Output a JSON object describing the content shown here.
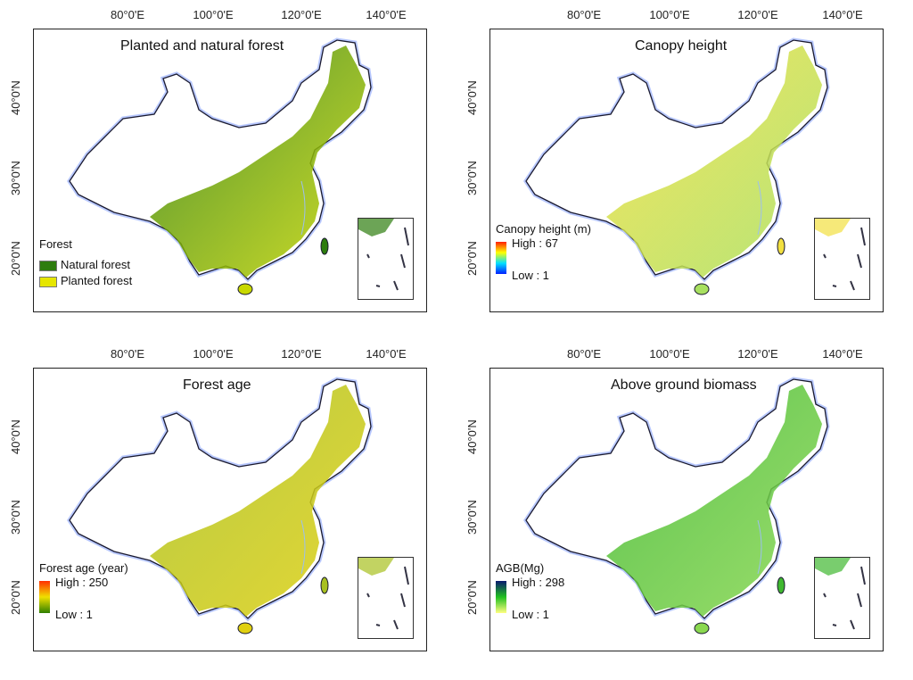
{
  "axis": {
    "x_ticks": [
      "80°0'E",
      "100°0'E",
      "120°0'E",
      "140°0'E"
    ],
    "y_ticks": [
      "40°0'N",
      "30°0'N",
      "20°0'N"
    ]
  },
  "panels": [
    {
      "title": "Planted and natural forest",
      "legend": {
        "type": "categorical",
        "title": "Forest",
        "items": [
          {
            "label": "Natural forest",
            "color": "#2e7d0e"
          },
          {
            "label": "Planted forest",
            "color": "#e6e600"
          }
        ]
      },
      "fill": [
        "#2e7d0e",
        "#c8d800"
      ]
    },
    {
      "title": "Canopy height",
      "legend": {
        "type": "ramp",
        "title": "Canopy height (m)",
        "high": "High : 67",
        "low": "Low : 1",
        "colors": [
          "#ff2000",
          "#ffff00",
          "#00e0ff",
          "#0020ff"
        ]
      },
      "fill": [
        "#f2e040",
        "#a8e060"
      ]
    },
    {
      "title": "Forest age",
      "legend": {
        "type": "ramp",
        "title": "Forest age (year)",
        "high": "High : 250",
        "low": "Low : 1",
        "colors": [
          "#ff3000",
          "#f0e000",
          "#2e8000"
        ]
      },
      "fill": [
        "#a8c020",
        "#e0d010"
      ]
    },
    {
      "title": "Above ground biomass",
      "legend": {
        "type": "ramp",
        "title": "AGB(Mg)",
        "high": "High : 298",
        "low": "Low : 1",
        "colors": [
          "#0a1a70",
          "#20c020",
          "#ffff80"
        ]
      },
      "fill": [
        "#40b830",
        "#8ad850"
      ]
    }
  ]
}
